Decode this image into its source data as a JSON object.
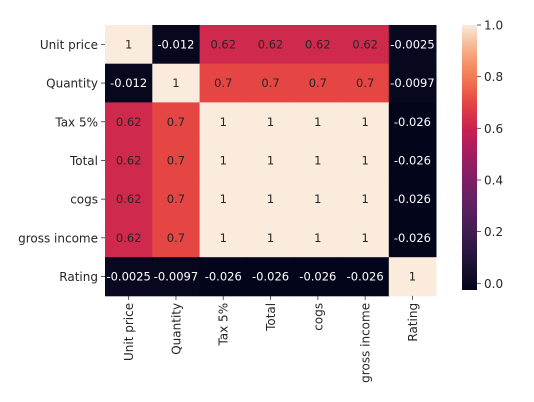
{
  "chart_data": {
    "type": "heatmap",
    "title": "",
    "xlabel": "",
    "ylabel": "",
    "x_labels": [
      "Unit price",
      "Quantity",
      "Tax 5%",
      "Total",
      "cogs",
      "gross income",
      "Rating"
    ],
    "y_labels": [
      "Unit price",
      "Quantity",
      "Tax 5%",
      "Total",
      "cogs",
      "gross income",
      "Rating"
    ],
    "values": [
      [
        1,
        -0.012,
        0.62,
        0.62,
        0.62,
        0.62,
        -0.0025
      ],
      [
        -0.012,
        1,
        0.7,
        0.7,
        0.7,
        0.7,
        -0.0097
      ],
      [
        0.62,
        0.7,
        1,
        1,
        1,
        1,
        -0.026
      ],
      [
        0.62,
        0.7,
        1,
        1,
        1,
        1,
        -0.026
      ],
      [
        0.62,
        0.7,
        1,
        1,
        1,
        1,
        -0.026
      ],
      [
        0.62,
        0.7,
        1,
        1,
        1,
        1,
        -0.026
      ],
      [
        -0.0025,
        -0.0097,
        -0.026,
        -0.026,
        -0.026,
        -0.026,
        1
      ]
    ],
    "annotations": [
      [
        "1",
        "-0.012",
        "0.62",
        "0.62",
        "0.62",
        "0.62",
        "-0.0025"
      ],
      [
        "-0.012",
        "1",
        "0.7",
        "0.7",
        "0.7",
        "0.7",
        "-0.0097"
      ],
      [
        "0.62",
        "0.7",
        "1",
        "1",
        "1",
        "1",
        "-0.026"
      ],
      [
        "0.62",
        "0.7",
        "1",
        "1",
        "1",
        "1",
        "-0.026"
      ],
      [
        "0.62",
        "0.7",
        "1",
        "1",
        "1",
        "1",
        "-0.026"
      ],
      [
        "0.62",
        "0.7",
        "1",
        "1",
        "1",
        "1",
        "-0.026"
      ],
      [
        "-0.0025",
        "-0.0097",
        "-0.026",
        "-0.026",
        "-0.026",
        "-0.026",
        "1"
      ]
    ],
    "colorbar": {
      "range": [
        -0.026,
        1.0
      ],
      "ticks": [
        0.0,
        0.2,
        0.4,
        0.6,
        0.8,
        1.0
      ],
      "tick_labels": [
        "0.0",
        "0.2",
        "0.4",
        "0.6",
        "0.8",
        "1.0"
      ],
      "colormap": "rocket"
    }
  }
}
